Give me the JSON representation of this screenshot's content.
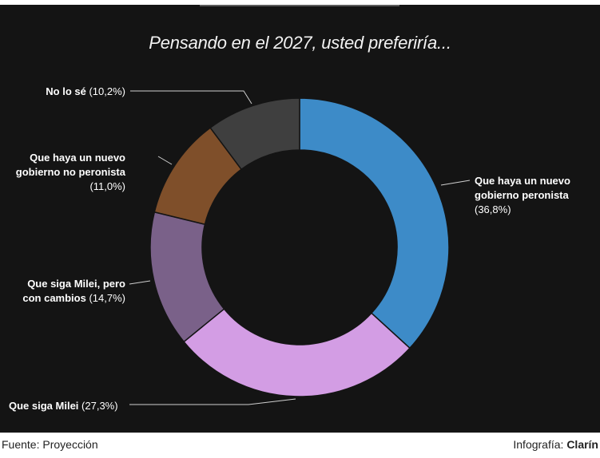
{
  "chart_data": {
    "type": "pie",
    "title": "Pensando en el 2027, usted preferiría...",
    "categories": [
      "Que haya un nuevo gobierno peronista",
      "Que siga Milei",
      "Que siga Milei, pero con cambios",
      "Que haya un nuevo gobierno no peronista",
      "No lo sé"
    ],
    "values": [
      36.8,
      27.3,
      14.7,
      11.0,
      10.2
    ],
    "value_labels": [
      "(36,8%)",
      "(27,3%)",
      "(14,7%)",
      "(11,0%)",
      "(10,2%)"
    ],
    "colors": [
      "#3d8bc8",
      "#d39de4",
      "#7a6189",
      "#7f4f2a",
      "#3f3f3f"
    ],
    "donut": true,
    "start_angle": "top, clockwise"
  },
  "labels": {
    "peronista": {
      "line1": "Que haya un nuevo",
      "line2": "gobierno peronista",
      "pct": "(36,8%)"
    },
    "milei": {
      "name": "Que siga Milei",
      "pct": "(27,3%)"
    },
    "milei_cambios": {
      "line1": "Que siga Milei, pero",
      "line2": "con cambios",
      "pct": "(14,7%)"
    },
    "no_peronista": {
      "line1": "Que haya un nuevo",
      "line2": "gobierno no peronista",
      "pct": "(11,0%)"
    },
    "no_lo_se": {
      "name": "No lo sé",
      "pct": "(10,2%)"
    }
  },
  "footer": {
    "source": "Fuente: Proyección",
    "credit_prefix": "Infografía: ",
    "credit_brand": "Clarín"
  },
  "colors": {
    "background": "#141414",
    "leader_line": "#cfcfcf"
  }
}
